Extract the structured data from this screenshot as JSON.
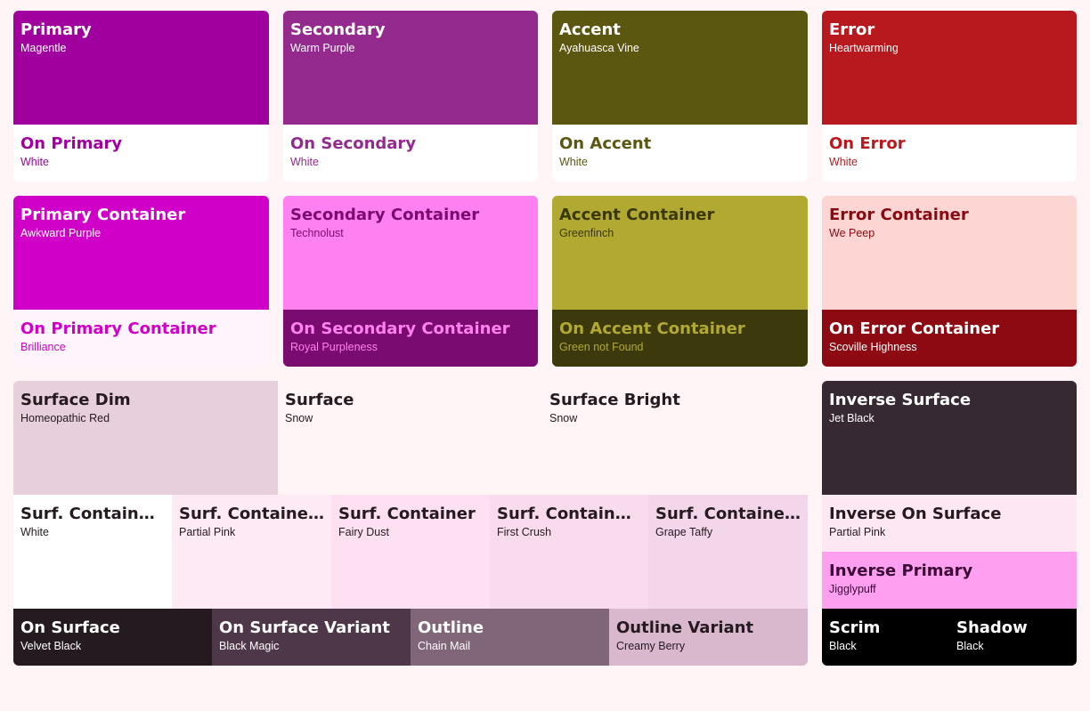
{
  "palette": {
    "primary": {
      "name": "Primary",
      "color_name": "Magentle",
      "bg": "#a0009e",
      "fg": "#ffffff"
    },
    "on_primary": {
      "name": "On Primary",
      "color_name": "White",
      "bg": "#ffffff",
      "fg": "#a0009e"
    },
    "secondary": {
      "name": "Secondary",
      "color_name": "Warm Purple",
      "bg": "#952a8e",
      "fg": "#ffffff"
    },
    "on_secondary": {
      "name": "On Secondary",
      "color_name": "White",
      "bg": "#ffffff",
      "fg": "#952a8e"
    },
    "accent": {
      "name": "Accent",
      "color_name": "Ayahuasca Vine",
      "bg": "#5b5610",
      "fg": "#ffffff"
    },
    "on_accent": {
      "name": "On Accent",
      "color_name": "White",
      "bg": "#ffffff",
      "fg": "#5b5610"
    },
    "error": {
      "name": "Error",
      "color_name": "Heartwarming",
      "bg": "#b8191e",
      "fg": "#ffffff"
    },
    "on_error": {
      "name": "On Error",
      "color_name": "White",
      "bg": "#ffffff",
      "fg": "#b8191e"
    },
    "primary_container": {
      "name": "Primary Container",
      "color_name": "Awkward Purple",
      "bg": "#d000c8",
      "fg": "#ffffff"
    },
    "on_primary_container": {
      "name": "On Primary Container",
      "color_name": "Brilliance",
      "bg": "#fdf5fb",
      "fg": "#d000c8"
    },
    "secondary_container": {
      "name": "Secondary Container",
      "color_name": "Technolust",
      "bg": "#ff80f0",
      "fg": "#7a0b70"
    },
    "on_secondary_container": {
      "name": "On Secondary Container",
      "color_name": "Royal Purpleness",
      "bg": "#7a0b6f",
      "fg": "#ff80f0"
    },
    "accent_container": {
      "name": "Accent Container",
      "color_name": "Greenfinch",
      "bg": "#b1a932",
      "fg": "#3a3808"
    },
    "on_accent_container": {
      "name": "On Accent Container",
      "color_name": "Green not Found",
      "bg": "#3c3a0c",
      "fg": "#b1a932"
    },
    "error_container": {
      "name": "Error Container",
      "color_name": "We Peep",
      "bg": "#fdd6d3",
      "fg": "#8a0a12"
    },
    "on_error_container": {
      "name": "On Error Container",
      "color_name": "Scoville Highness",
      "bg": "#8e0a12",
      "fg": "#ffffff"
    },
    "surface_dim": {
      "name": "Surface Dim",
      "color_name": "Homeopathic Red",
      "bg": "#e7cfdc",
      "fg": "#241a20"
    },
    "surface": {
      "name": "Surface",
      "color_name": "Snow",
      "bg": "#fff5f7",
      "fg": "#241a20"
    },
    "surface_bright": {
      "name": "Surface Bright",
      "color_name": "Snow",
      "bg": "#fff5f7",
      "fg": "#241a20"
    },
    "inverse_surface": {
      "name": "Inverse Surface",
      "color_name": "Jet Black",
      "bg": "#372934",
      "fg": "#ffffff"
    },
    "surf_container_lowest": {
      "name": "Surf. Container Lowest",
      "color_name": "White",
      "bg": "#ffffff",
      "fg": "#241a20"
    },
    "surf_container_low": {
      "name": "Surf. Container Low",
      "color_name": "Partial Pink",
      "bg": "#fdeaf4",
      "fg": "#241a20"
    },
    "surf_container": {
      "name": "Surf. Container",
      "color_name": "Fairy Dust",
      "bg": "#fde0f2",
      "fg": "#241a20"
    },
    "surf_container_high": {
      "name": "Surf. Container High",
      "color_name": "First Crush",
      "bg": "#f8dced",
      "fg": "#241a20"
    },
    "surf_container_highest": {
      "name": "Surf. Container Highest",
      "color_name": "Grape Taffy",
      "bg": "#f3d6e9",
      "fg": "#241a20"
    },
    "inverse_on_surface": {
      "name": "Inverse On Surface",
      "color_name": "Partial Pink",
      "bg": "#fde7f2",
      "fg": "#241a20"
    },
    "inverse_primary": {
      "name": "Inverse Primary",
      "color_name": "Jigglypuff",
      "bg": "#ff9ff0",
      "fg": "#3a0a35"
    },
    "on_surface": {
      "name": "On Surface",
      "color_name": "Velvet Black",
      "bg": "#241a20",
      "fg": "#ffffff"
    },
    "on_surface_variant": {
      "name": "On Surface Variant",
      "color_name": "Black Magic",
      "bg": "#4e3749",
      "fg": "#ffffff"
    },
    "outline": {
      "name": "Outline",
      "color_name": "Chain Mail",
      "bg": "#806678",
      "fg": "#ffffff"
    },
    "outline_variant": {
      "name": "Outline Variant",
      "color_name": "Creamy Berry",
      "bg": "#d9b7cd",
      "fg": "#241a20"
    },
    "scrim": {
      "name": "Scrim",
      "color_name": "Black",
      "bg": "#000000",
      "fg": "#ffffff"
    },
    "shadow": {
      "name": "Shadow",
      "color_name": "Black",
      "bg": "#000000",
      "fg": "#ffffff"
    }
  }
}
